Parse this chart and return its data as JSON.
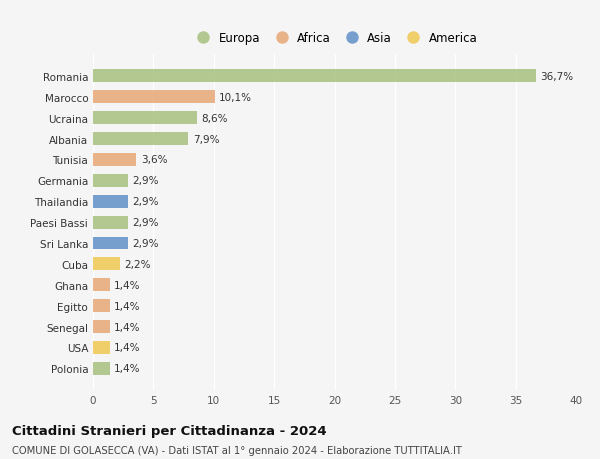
{
  "countries": [
    "Romania",
    "Marocco",
    "Ucraina",
    "Albania",
    "Tunisia",
    "Germania",
    "Thailandia",
    "Paesi Bassi",
    "Sri Lanka",
    "Cuba",
    "Ghana",
    "Egitto",
    "Senegal",
    "USA",
    "Polonia"
  ],
  "values": [
    36.7,
    10.1,
    8.6,
    7.9,
    3.6,
    2.9,
    2.9,
    2.9,
    2.9,
    2.2,
    1.4,
    1.4,
    1.4,
    1.4,
    1.4
  ],
  "labels": [
    "36,7%",
    "10,1%",
    "8,6%",
    "7,9%",
    "3,6%",
    "2,9%",
    "2,9%",
    "2,9%",
    "2,9%",
    "2,2%",
    "1,4%",
    "1,4%",
    "1,4%",
    "1,4%",
    "1,4%"
  ],
  "continents": [
    "Europa",
    "Africa",
    "Europa",
    "Europa",
    "Africa",
    "Europa",
    "Asia",
    "Europa",
    "Asia",
    "America",
    "Africa",
    "Africa",
    "Africa",
    "America",
    "Europa"
  ],
  "colors": {
    "Europa": "#a8c080",
    "Africa": "#e8a878",
    "Asia": "#6090c8",
    "America": "#f0c850"
  },
  "xlim": [
    0,
    40
  ],
  "xticks": [
    0,
    5,
    10,
    15,
    20,
    25,
    30,
    35,
    40
  ],
  "title": "Cittadini Stranieri per Cittadinanza - 2024",
  "subtitle": "COMUNE DI GOLASECCA (VA) - Dati ISTAT al 1° gennaio 2024 - Elaborazione TUTTITALIA.IT",
  "background_color": "#f5f5f5",
  "bar_height": 0.62,
  "grid_color": "#ffffff",
  "label_fontsize": 7.5,
  "tick_fontsize": 7.5,
  "title_fontsize": 9.5,
  "subtitle_fontsize": 7.2,
  "legend_labels": [
    "Europa",
    "Africa",
    "Asia",
    "America"
  ]
}
